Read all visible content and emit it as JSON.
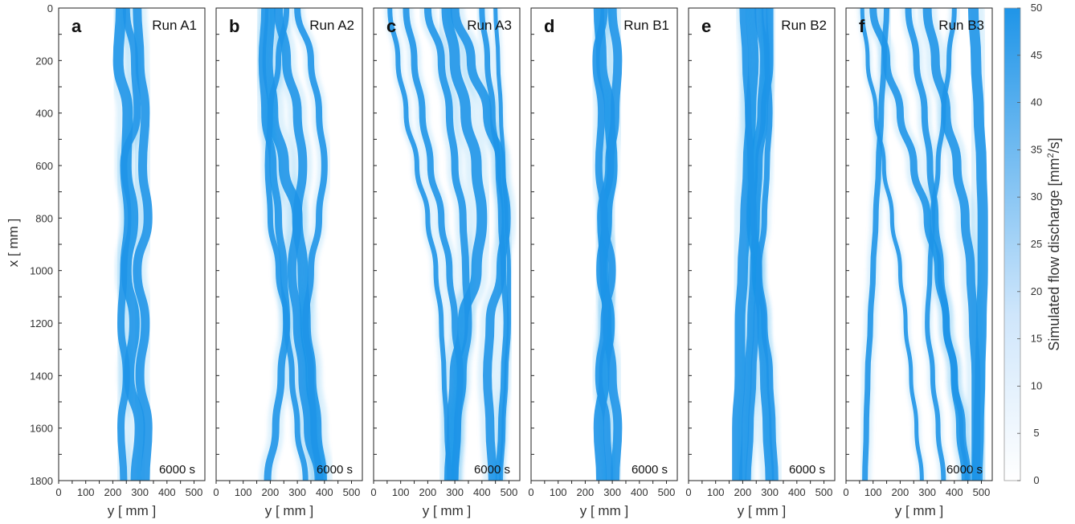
{
  "chart_data": {
    "type": "heatmap",
    "colorbar": {
      "label": "Simulated flow discharge [mm²/s]",
      "min": 0,
      "max": 50,
      "ticks": [
        "0",
        "5",
        "10",
        "15",
        "20",
        "25",
        "30",
        "35",
        "40",
        "45",
        "50"
      ],
      "color_low": "#ffffff",
      "color_high": "#1f95e8"
    },
    "x_axis": {
      "label": "x [ mm ]",
      "range": [
        0,
        1800
      ],
      "ticks": [
        "0",
        "200",
        "400",
        "600",
        "800",
        "1000",
        "1200",
        "1400",
        "1600",
        "1800"
      ]
    },
    "y_axis": {
      "label": "y [ mm ]",
      "range": [
        0,
        540
      ],
      "ticks": [
        "0",
        "100",
        "200",
        "300",
        "400",
        "500"
      ]
    },
    "panels": [
      {
        "letter": "a",
        "run": "Run A1",
        "time": "6000 s",
        "channels": [
          [
            230,
            220,
            255,
            250,
            275,
            250,
            280,
            260,
            300,
            285
          ],
          [
            290,
            300,
            320,
            310,
            330,
            290,
            320,
            300,
            330,
            320
          ],
          [
            250,
            280,
            290,
            240,
            255,
            240,
            230,
            250,
            230,
            240
          ]
        ]
      },
      {
        "letter": "b",
        "run": "Run A2",
        "time": "6000 s",
        "channels": [
          [
            200,
            190,
            210,
            250,
            300,
            320,
            330,
            350,
            370,
            390
          ],
          [
            230,
            260,
            300,
            320,
            300,
            280,
            300,
            320,
            340,
            380
          ],
          [
            180,
            170,
            180,
            210,
            230,
            250,
            260,
            240,
            220,
            190
          ],
          [
            300,
            350,
            380,
            400,
            380,
            350,
            330,
            350,
            360,
            380
          ],
          [
            260,
            230,
            200,
            190,
            200,
            230,
            260,
            280,
            300,
            330
          ]
        ]
      },
      {
        "letter": "c",
        "run": "Run A3",
        "time": "6000 s",
        "channels": [
          [
            270,
            300,
            340,
            380,
            400,
            380,
            330,
            300,
            290,
            280
          ],
          [
            300,
            360,
            420,
            470,
            490,
            470,
            430,
            420,
            430,
            440
          ],
          [
            200,
            250,
            280,
            300,
            330,
            340,
            350,
            330,
            310,
            300
          ],
          [
            120,
            150,
            180,
            210,
            250,
            280,
            300,
            320,
            310,
            300
          ],
          [
            400,
            420,
            440,
            460,
            470,
            480,
            490,
            480,
            470,
            460
          ],
          [
            60,
            90,
            120,
            160,
            200,
            230,
            250,
            260,
            270,
            280
          ],
          [
            450,
            460,
            470,
            480,
            490,
            500,
            500,
            490,
            480,
            470
          ]
        ]
      },
      {
        "letter": "d",
        "run": "Run B1",
        "time": "6000 s",
        "channels": [
          [
            250,
            260,
            290,
            300,
            280,
            260,
            290,
            270,
            250,
            260
          ],
          [
            300,
            320,
            310,
            290,
            260,
            270,
            280,
            300,
            320,
            310
          ],
          [
            270,
            240,
            260,
            250,
            270,
            300,
            270,
            250,
            280,
            290
          ]
        ]
      },
      {
        "letter": "e",
        "run": "Run B2",
        "time": "6000 s",
        "channels": [
          [
            230,
            240,
            230,
            220,
            210,
            200,
            190,
            190,
            180,
            180
          ],
          [
            260,
            280,
            270,
            240,
            230,
            250,
            270,
            280,
            290,
            300
          ],
          [
            300,
            300,
            280,
            260,
            250,
            240,
            230,
            220,
            210,
            200
          ],
          [
            200,
            210,
            220,
            230,
            240,
            260,
            280,
            300,
            310,
            320
          ],
          [
            280,
            290,
            300,
            290,
            280,
            260,
            250,
            240,
            230,
            220
          ]
        ]
      },
      {
        "letter": "f",
        "run": "Run B3",
        "time": "6000 s",
        "channels": [
          [
            470,
            480,
            490,
            500,
            505,
            505,
            500,
            495,
            490,
            485
          ],
          [
            300,
            330,
            370,
            410,
            440,
            460,
            470,
            480,
            480,
            480
          ],
          [
            100,
            150,
            200,
            250,
            300,
            340,
            370,
            400,
            420,
            440
          ],
          [
            230,
            260,
            290,
            310,
            330,
            350,
            370,
            400,
            430,
            450
          ],
          [
            150,
            140,
            130,
            120,
            110,
            100,
            90,
            80,
            75,
            70
          ],
          [
            400,
            380,
            360,
            340,
            320,
            310,
            300,
            320,
            340,
            360
          ],
          [
            60,
            80,
            110,
            140,
            170,
            200,
            220,
            240,
            260,
            280
          ]
        ]
      }
    ]
  }
}
